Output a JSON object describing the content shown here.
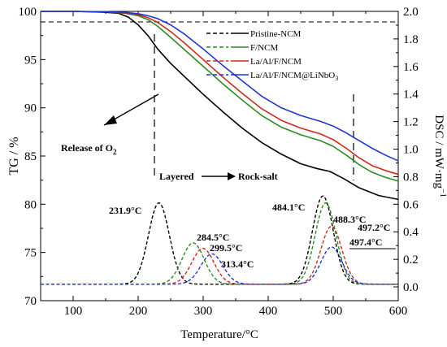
{
  "chart_data": {
    "type": "line",
    "xlabel": "Temperature/°C",
    "ylabel_left": "TG / %",
    "ylabel_right_main": "DSC / mW·mg",
    "ylabel_right_sup": "−1",
    "xlim": [
      50,
      600
    ],
    "ylim_left": [
      70,
      100
    ],
    "ylim_right": [
      -0.1,
      2.0
    ],
    "x_ticks": [
      100,
      200,
      300,
      400,
      500,
      600
    ],
    "y_left_ticks": [
      70,
      75,
      80,
      85,
      90,
      95,
      100
    ],
    "y_right_ticks": [
      "0.0",
      "0.2",
      "0.4",
      "0.6",
      "0.8",
      "1.0",
      "1.2",
      "1.4",
      "1.6",
      "1.8",
      "2.0"
    ],
    "legend_position": "top-right",
    "legend": [
      {
        "label": "Pristine-NCM",
        "color": "#000000"
      },
      {
        "label": "F/NCM",
        "color": "#2e8b22"
      },
      {
        "label": "La/Al/F/NCM",
        "color": "#cc2a1a"
      },
      {
        "label": "La/Al/F/NCM@LiNbO",
        "sub": "3",
        "color": "#1f35d4"
      }
    ],
    "tg_series": [
      {
        "name": "Pristine-NCM",
        "color": "#000000",
        "x": [
          50,
          100,
          150,
          170,
          185,
          200,
          215,
          230,
          250,
          275,
          300,
          330,
          360,
          390,
          420,
          450,
          475,
          495,
          515,
          540,
          570,
          600
        ],
        "y": [
          100,
          100,
          99.9,
          99.8,
          99.4,
          98.6,
          97.5,
          96.1,
          94.6,
          93.0,
          91.4,
          89.6,
          87.9,
          86.4,
          85.2,
          84.2,
          83.7,
          83.4,
          82.7,
          81.7,
          80.9,
          80.5
        ]
      },
      {
        "name": "F/NCM",
        "color": "#2e8b22",
        "x": [
          50,
          100,
          150,
          180,
          200,
          215,
          230,
          250,
          270,
          300,
          330,
          360,
          390,
          420,
          450,
          480,
          500,
          520,
          540,
          560,
          580,
          600
        ],
        "y": [
          100,
          100,
          99.95,
          99.8,
          99.55,
          99.15,
          98.45,
          97.3,
          96.1,
          94.3,
          92.5,
          90.8,
          89.2,
          88.0,
          87.2,
          86.6,
          86.0,
          85.1,
          84.1,
          83.3,
          82.8,
          82.4
        ]
      },
      {
        "name": "La/Al/F/NCM",
        "color": "#cc2a1a",
        "x": [
          50,
          100,
          150,
          180,
          200,
          215,
          230,
          250,
          270,
          300,
          330,
          360,
          390,
          420,
          450,
          480,
          500,
          520,
          540,
          560,
          580,
          600
        ],
        "y": [
          100,
          100,
          99.95,
          99.85,
          99.65,
          99.35,
          98.85,
          97.9,
          96.8,
          95.0,
          93.2,
          91.5,
          89.9,
          88.7,
          87.9,
          87.3,
          86.7,
          85.8,
          84.8,
          84.0,
          83.5,
          83.1
        ]
      },
      {
        "name": "La/Al/F/NCM@LiNbO3",
        "color": "#1f35d4",
        "x": [
          50,
          100,
          150,
          180,
          200,
          215,
          230,
          250,
          270,
          300,
          330,
          360,
          390,
          420,
          450,
          480,
          500,
          520,
          540,
          560,
          580,
          600
        ],
        "y": [
          100,
          100,
          99.95,
          99.9,
          99.75,
          99.55,
          99.25,
          98.6,
          97.7,
          96.1,
          94.4,
          92.8,
          91.2,
          90.0,
          89.2,
          88.6,
          88.1,
          87.4,
          86.6,
          85.8,
          85.1,
          84.5
        ]
      }
    ],
    "dsc_series": [
      {
        "name": "Pristine-NCM",
        "color": "#000000",
        "baseline": 0.02,
        "peaks": [
          {
            "x": 231.9,
            "y": 0.61,
            "width": 16
          },
          {
            "x": 484.1,
            "y": 0.66,
            "width": 16
          }
        ]
      },
      {
        "name": "F/NCM",
        "color": "#2e8b22",
        "baseline": 0.02,
        "peaks": [
          {
            "x": 284.5,
            "y": 0.32,
            "width": 17
          },
          {
            "x": 488.3,
            "y": 0.61,
            "width": 16
          }
        ]
      },
      {
        "name": "La/Al/F/NCM",
        "color": "#cc2a1a",
        "baseline": 0.02,
        "peaks": [
          {
            "x": 299.5,
            "y": 0.28,
            "width": 17
          },
          {
            "x": 497.2,
            "y": 0.44,
            "width": 16
          }
        ]
      },
      {
        "name": "La/Al/F/NCM@LiNbO3",
        "color": "#1f35d4",
        "baseline": 0.02,
        "peaks": [
          {
            "x": 313.4,
            "y": 0.24,
            "width": 17
          },
          {
            "x": 497.4,
            "y": 0.29,
            "width": 16
          }
        ]
      }
    ],
    "annotations": {
      "release_of": "Release of O",
      "release_sub": "2",
      "layered": "Layered",
      "rock_salt": "Rock-salt",
      "peak_labels": [
        "231.9°C",
        "284.5°C",
        "299.5°C",
        "313.4°C",
        "484.1°C",
        "488.3°C",
        "497.2°C",
        "497.4°C"
      ]
    }
  }
}
